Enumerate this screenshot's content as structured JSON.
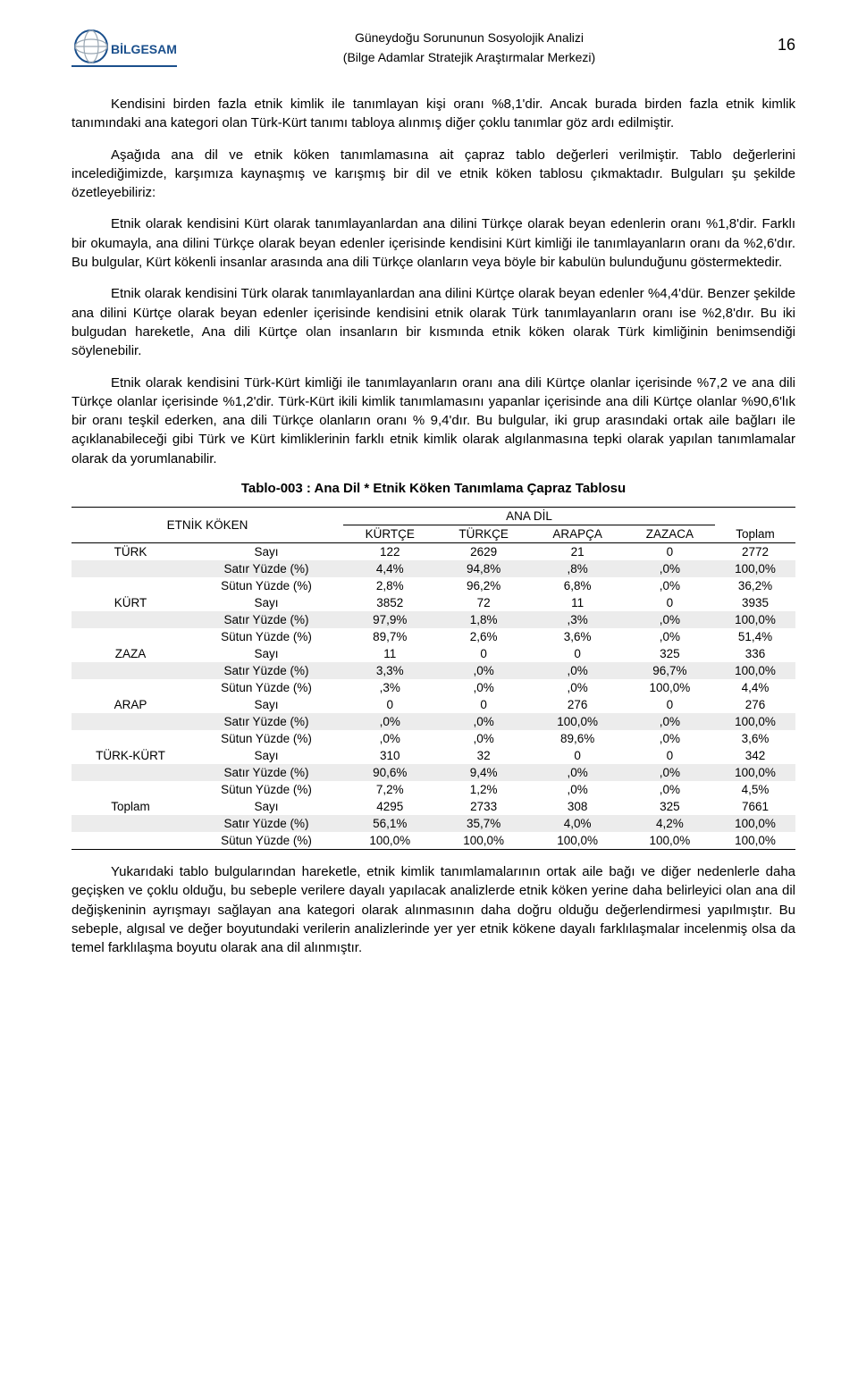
{
  "header": {
    "title_line1": "Güneydoğu Sorununun Sosyolojik Analizi",
    "title_line2": "(Bilge Adamlar Stratejik Araştırmalar Merkezi)",
    "page_number": "16",
    "logo_text": "BİLGESAM"
  },
  "paragraphs": {
    "p1": "Kendisini birden fazla etnik kimlik ile tanımlayan kişi oranı %8,1'dir. Ancak burada birden fazla etnik kimlik tanımındaki ana kategori olan Türk-Kürt tanımı tabloya alınmış diğer çoklu tanımlar göz ardı edilmiştir.",
    "p2": "Aşağıda ana dil ve etnik köken tanımlamasına ait çapraz tablo değerleri verilmiştir. Tablo değerlerini incelediğimizde, karşımıza kaynaşmış ve karışmış bir dil ve etnik köken tablosu çıkmaktadır. Bulguları şu şekilde özetleyebiliriz:",
    "p3": "Etnik olarak kendisini Kürt olarak tanımlayanlardan ana dilini Türkçe olarak beyan edenlerin oranı %1,8'dir. Farklı bir okumayla, ana dilini Türkçe olarak beyan edenler içerisinde kendisini Kürt kimliği ile tanımlayanların oranı da %2,6'dır. Bu bulgular, Kürt kökenli insanlar arasında ana dili Türkçe olanların veya böyle bir kabulün bulunduğunu göstermektedir.",
    "p4": "Etnik olarak kendisini Türk olarak tanımlayanlardan ana dilini Kürtçe olarak beyan edenler %4,4'dür. Benzer şekilde ana dilini Kürtçe olarak beyan edenler içerisinde kendisini etnik olarak Türk tanımlayanların oranı ise %2,8'dır. Bu iki bulgudan hareketle, Ana dili Kürtçe olan insanların bir kısmında etnik köken olarak Türk kimliğinin benimsendiği söylenebilir.",
    "p5": "Etnik olarak kendisini Türk-Kürt kimliği ile tanımlayanların oranı ana dili Kürtçe olanlar içerisinde %7,2 ve ana dili Türkçe olanlar içerisinde %1,2'dir. Türk-Kürt ikili kimlik tanımlamasını yapanlar içerisinde ana dili Kürtçe olanlar %90,6'lık bir oranı teşkil ederken, ana dili Türkçe olanların oranı % 9,4'dır. Bu bulgular, iki grup arasındaki ortak aile bağları ile açıklanabileceği gibi Türk ve Kürt kimliklerinin farklı etnik kimlik olarak algılanmasına tepki olarak yapılan tanımlamalar olarak da yorumlanabilir.",
    "p6": "Yukarıdaki tablo bulgularından hareketle, etnik kimlik tanımlamalarının ortak aile bağı ve diğer nedenlerle daha geçişken ve çoklu olduğu, bu sebeple verilere dayalı yapılacak analizlerde etnik köken yerine daha belirleyici olan ana dil değişkeninin ayrışmayı sağlayan ana kategori olarak alınmasının daha doğru olduğu değerlendirmesi yapılmıştır. Bu sebeple, algısal ve değer boyutundaki verilerin analizlerinde yer yer etnik kökene dayalı farklılaşmalar incelenmiş olsa da temel farklılaşma boyutu olarak ana dil alınmıştır."
  },
  "table": {
    "title": "Tablo-003 :  Ana Dil * Etnik Köken Tanımlama Çapraz Tablosu",
    "corner_label": "ETNİK KÖKEN",
    "spanning_header": "ANA DİL",
    "col_headers": [
      "KÜRTÇE",
      "TÜRKÇE",
      "ARAPÇA",
      "ZAZACA",
      "Toplam"
    ],
    "metric_labels": {
      "count": "Sayı",
      "row_pct": "Satır Yüzde (%)",
      "col_pct": "Sütun Yüzde (%)"
    },
    "groups": [
      {
        "name": "TÜRK",
        "rows": [
          {
            "metric": "count",
            "cells": [
              "122",
              "2629",
              "21",
              "0",
              "2772"
            ]
          },
          {
            "metric": "row_pct",
            "cells": [
              "4,4%",
              "94,8%",
              ",8%",
              ",0%",
              "100,0%"
            ],
            "shaded": true
          },
          {
            "metric": "col_pct",
            "cells": [
              "2,8%",
              "96,2%",
              "6,8%",
              ",0%",
              "36,2%"
            ]
          }
        ]
      },
      {
        "name": "KÜRT",
        "rows": [
          {
            "metric": "count",
            "cells": [
              "3852",
              "72",
              "11",
              "0",
              "3935"
            ]
          },
          {
            "metric": "row_pct",
            "cells": [
              "97,9%",
              "1,8%",
              ",3%",
              ",0%",
              "100,0%"
            ],
            "shaded": true
          },
          {
            "metric": "col_pct",
            "cells": [
              "89,7%",
              "2,6%",
              "3,6%",
              ",0%",
              "51,4%"
            ]
          }
        ]
      },
      {
        "name": "ZAZA",
        "rows": [
          {
            "metric": "count",
            "cells": [
              "11",
              "0",
              "0",
              "325",
              "336"
            ]
          },
          {
            "metric": "row_pct",
            "cells": [
              "3,3%",
              ",0%",
              ",0%",
              "96,7%",
              "100,0%"
            ],
            "shaded": true
          },
          {
            "metric": "col_pct",
            "cells": [
              ",3%",
              ",0%",
              ",0%",
              "100,0%",
              "4,4%"
            ]
          }
        ]
      },
      {
        "name": "ARAP",
        "rows": [
          {
            "metric": "count",
            "cells": [
              "0",
              "0",
              "276",
              "0",
              "276"
            ]
          },
          {
            "metric": "row_pct",
            "cells": [
              ",0%",
              ",0%",
              "100,0%",
              ",0%",
              "100,0%"
            ],
            "shaded": true
          },
          {
            "metric": "col_pct",
            "cells": [
              ",0%",
              ",0%",
              "89,6%",
              ",0%",
              "3,6%"
            ]
          }
        ]
      },
      {
        "name": "TÜRK-KÜRT",
        "rows": [
          {
            "metric": "count",
            "cells": [
              "310",
              "32",
              "0",
              "0",
              "342"
            ]
          },
          {
            "metric": "row_pct",
            "cells": [
              "90,6%",
              "9,4%",
              ",0%",
              ",0%",
              "100,0%"
            ],
            "shaded": true
          },
          {
            "metric": "col_pct",
            "cells": [
              "7,2%",
              "1,2%",
              ",0%",
              ",0%",
              "4,5%"
            ]
          }
        ]
      },
      {
        "name": "Toplam",
        "rows": [
          {
            "metric": "count",
            "cells": [
              "4295",
              "2733",
              "308",
              "325",
              "7661"
            ]
          },
          {
            "metric": "row_pct",
            "cells": [
              "56,1%",
              "35,7%",
              "4,0%",
              "4,2%",
              "100,0%"
            ],
            "shaded": true
          },
          {
            "metric": "col_pct",
            "cells": [
              "100,0%",
              "100,0%",
              "100,0%",
              "100,0%",
              "100,0%"
            ]
          }
        ]
      }
    ]
  },
  "colors": {
    "logo_blue": "#1a4f8c",
    "logo_gray": "#9aa7b3",
    "text": "#000000",
    "shade": "#ececec",
    "rule": "#000000"
  }
}
